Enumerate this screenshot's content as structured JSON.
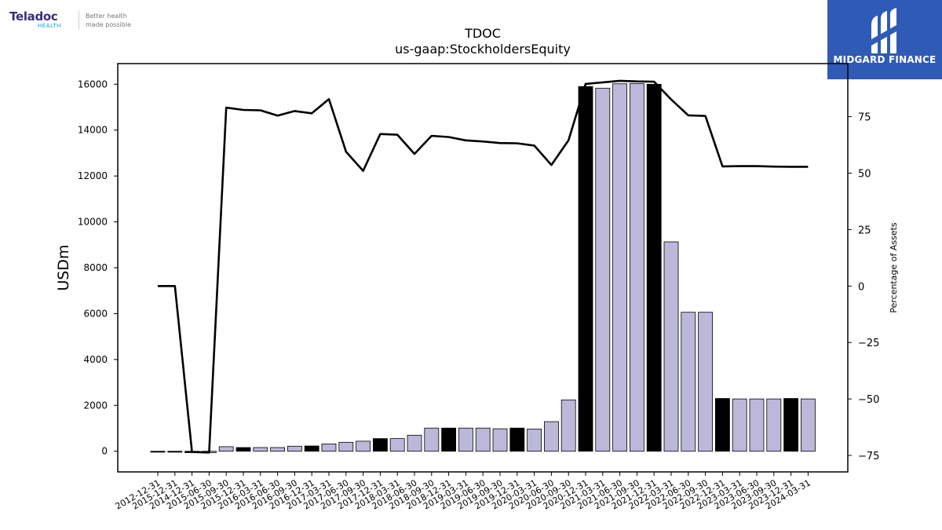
{
  "branding": {
    "left_logo_text": "Teladoc",
    "left_logo_sub": "HEALTH",
    "left_tagline_1": "Better health",
    "left_tagline_2": "made possible",
    "right_logo_text": "MIDGARD FINANCE",
    "right_logo_bg": "#2f5bb7"
  },
  "chart_data": {
    "type": "bar",
    "title": "TDOC",
    "subtitle": "us-gaap:StockholdersEquity",
    "ylabel": "USDm",
    "y2label": "Percentage of Assets",
    "ylim": [
      -900,
      16900
    ],
    "y2lim": [
      -82.3,
      98.5
    ],
    "yticks": [
      0,
      2000,
      4000,
      6000,
      8000,
      10000,
      12000,
      14000,
      16000
    ],
    "y2ticks": [
      -75,
      -50,
      -25,
      0,
      25,
      50,
      75
    ],
    "y2tick_labels": [
      "−75",
      "−50",
      "−25",
      "0",
      "25",
      "50",
      "75"
    ],
    "categories": [
      "2012-12-31",
      "2015-12-31",
      "2014-12-31",
      "2015-06-30",
      "2015-09-30",
      "2015-12-31",
      "2016-03-31",
      "2016-06-30",
      "2016-09-30",
      "2016-12-31",
      "2017-03-31",
      "2017-06-30",
      "2017-09-30",
      "2017-12-31",
      "2018-03-31",
      "2018-06-30",
      "2018-09-30",
      "2018-12-31",
      "2019-03-31",
      "2019-06-30",
      "2019-09-30",
      "2019-12-31",
      "2020-03-31",
      "2020-06-30",
      "2020-09-30",
      "2020-12-31",
      "2021-03-31",
      "2021-06-30",
      "2021-09-30",
      "2021-12-31",
      "2022-03-31",
      "2022-06-30",
      "2022-09-30",
      "2022-12-31",
      "2023-03-31",
      "2023-06-30",
      "2023-09-30",
      "2023-12-31",
      "2024-03-31"
    ],
    "series": [
      {
        "role": "bars",
        "values": [
          -40,
          -40,
          -60,
          -60,
          200,
          160,
          160,
          160,
          220,
          230,
          320,
          390,
          440,
          550,
          550,
          700,
          1010,
          1010,
          1010,
          1010,
          980,
          1010,
          970,
          1290,
          2240,
          15900,
          15830,
          16020,
          16030,
          16000,
          9130,
          6060,
          6060,
          2300,
          2280,
          2280,
          2280,
          2300,
          2280
        ],
        "annual": [
          true,
          true,
          true,
          false,
          false,
          true,
          false,
          false,
          false,
          true,
          false,
          false,
          false,
          true,
          false,
          false,
          false,
          true,
          false,
          false,
          false,
          true,
          false,
          false,
          false,
          true,
          false,
          false,
          false,
          true,
          false,
          false,
          false,
          true,
          false,
          false,
          false,
          true,
          false
        ]
      },
      {
        "role": "line",
        "axis": "right",
        "values": [
          0,
          0,
          -73.5,
          -73.7,
          79,
          78,
          77.8,
          75.5,
          77.5,
          76.5,
          82.8,
          59.5,
          51,
          67.3,
          67,
          58.5,
          66.5,
          66,
          64.5,
          64,
          63.3,
          63.2,
          62.2,
          53.6,
          64.5,
          89.5,
          90.2,
          90.9,
          90.6,
          90.5,
          82.6,
          75.6,
          75.3,
          53,
          53.1,
          53.1,
          52.9,
          52.8,
          52.8
        ]
      }
    ],
    "colors": {
      "bar_annual": "#000000",
      "bar_quarter": "#bcb8d9",
      "line": "#000000"
    },
    "grid": false
  }
}
